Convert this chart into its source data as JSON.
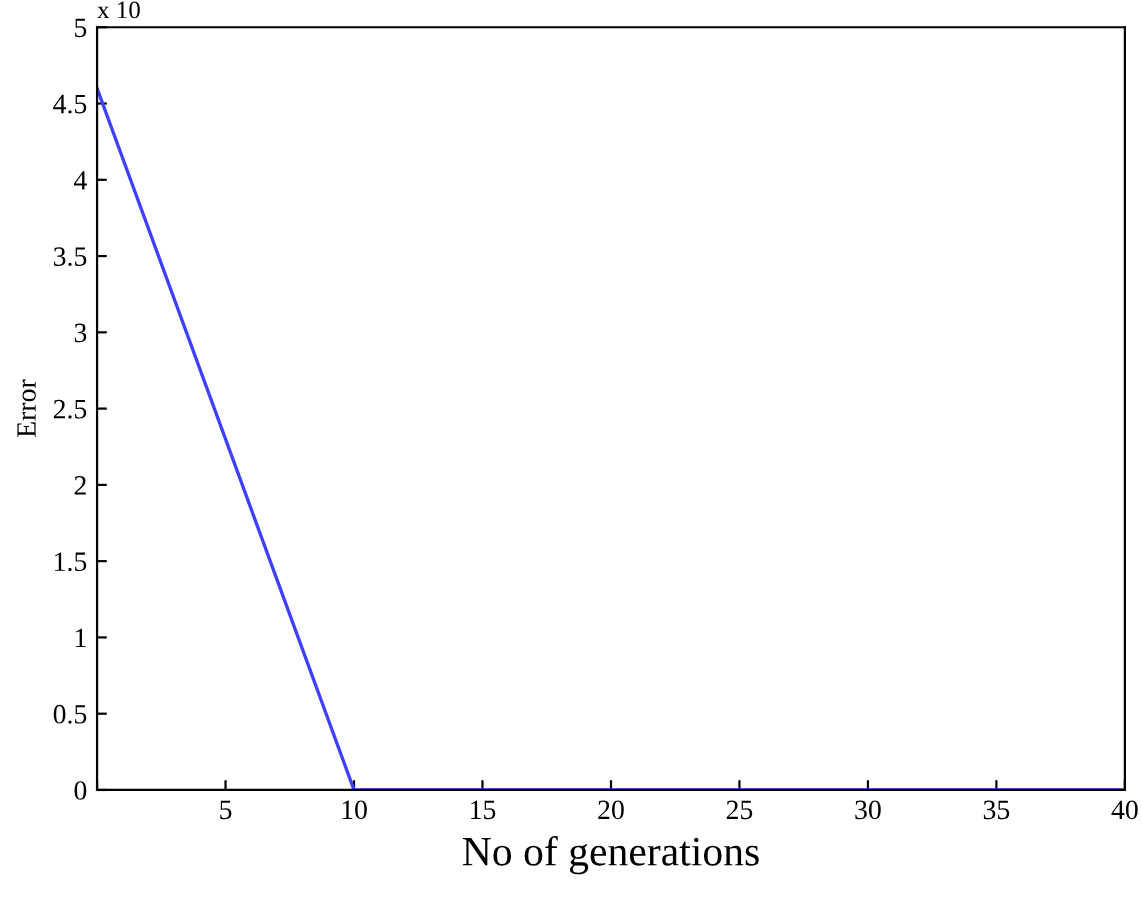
{
  "chart_data": {
    "type": "line",
    "xlabel": "No of generations",
    "ylabel": "Error",
    "x": [
      0,
      10,
      40
    ],
    "series": [
      {
        "color": "#3f3fff",
        "values": [
          4.6,
          0,
          0
        ]
      }
    ],
    "xlim": [
      0,
      40
    ],
    "xticks": [
      {
        "value": 0,
        "label": null
      },
      5,
      10,
      15,
      20,
      25,
      30,
      35,
      40
    ],
    "ylim": [
      0,
      5
    ],
    "yticks": [
      0,
      0.5,
      1,
      1.5,
      2,
      2.5,
      3,
      3.5,
      4,
      4.5,
      5
    ],
    "annotations": [
      "x 10"
    ],
    "grid": false
  }
}
